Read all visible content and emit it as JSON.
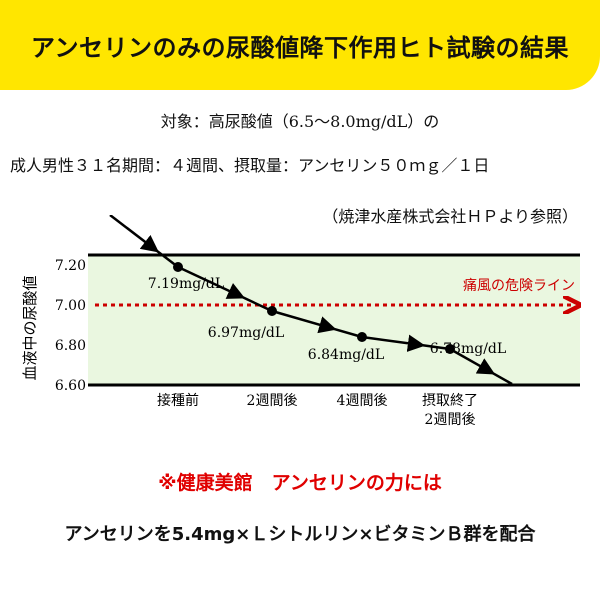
{
  "header": {
    "title": "アンセリンのみの尿酸値降下作用ヒト試験の結果",
    "bg_color": "#ffe600"
  },
  "subtitle": {
    "line1": "対象：高尿酸値（6.5〜8.0mg/dL）の",
    "line2": "成人男性３１名期間：４週間、摂取量：アンセリン５０ｍｇ／１日",
    "source": "（焼津水産株式会社ＨＰより参照）"
  },
  "chart_data": {
    "type": "line",
    "ylabel": "血液中の尿酸値",
    "ylim": [
      6.6,
      7.25
    ],
    "yticks": [
      "7.20",
      "7.00",
      "6.80",
      "6.60"
    ],
    "categories": [
      "接種前",
      "2週間後",
      "4週間後",
      "摂取終了\n2週間後"
    ],
    "series": [
      {
        "values": [
          7.19,
          6.97,
          6.84,
          6.78
        ],
        "labels": [
          "7.19mg/dL",
          "6.97mg/dL",
          "6.84mg/dL",
          "6.78mg/dL"
        ],
        "color": "#000000"
      }
    ],
    "reference_line": {
      "value": 7.0,
      "label": "痛風の危険ライン",
      "color": "#cc0000"
    },
    "band_color": "#eaf7e0",
    "grid": false
  },
  "footer": {
    "note": "※健康美館　アンセリンの力には",
    "formula": "アンセリンを5.4mg×Ｌシトルリン×ビタミンＢ群を配合",
    "note_color": "#e00000"
  }
}
